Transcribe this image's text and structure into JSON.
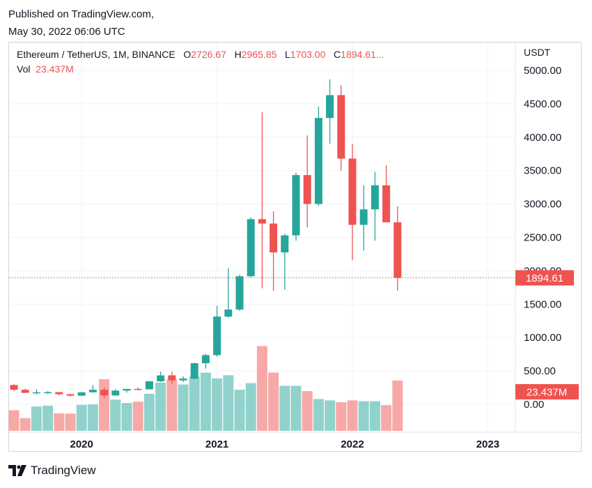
{
  "header": {
    "published_line1": "Published on TradingView.com,",
    "published_line2": "May 30, 2022 06:06 UTC"
  },
  "legend": {
    "symbol": "Ethereum / TetherUS, 1M, BINANCE",
    "o_label": "O",
    "o_value": "2726.67",
    "h_label": "H",
    "h_value": "2965.85",
    "l_label": "L",
    "l_value": "1703.00",
    "c_label": "C",
    "c_value": "1894.61...",
    "vol_label": "Vol",
    "vol_value": "23.437M"
  },
  "axis": {
    "unit": "USDT",
    "last_price_label": "1894.61",
    "volume_label": "23.437M"
  },
  "footer": {
    "brand": "TradingView"
  },
  "colors": {
    "up": "#26a69a",
    "down": "#ef5350",
    "up_volume": "#26a69a",
    "down_volume": "#ef5350",
    "grid": "#f0f3fa",
    "text": "#131722"
  },
  "chart_data": {
    "type": "candlestick",
    "symbol": "Ethereum / TetherUS",
    "interval": "1M",
    "exchange": "BINANCE",
    "y_axis_ticks": [
      "5000.00",
      "4500.00",
      "4000.00",
      "3500.00",
      "3000.00",
      "2500.00",
      "2000.00",
      "1500.00",
      "1000.00",
      "500.00",
      "0.00"
    ],
    "ylim": [
      0,
      5000
    ],
    "x_axis_ticks": [
      "2020",
      "2021",
      "2022",
      "2023"
    ],
    "grid": true,
    "last_price": 1894.61,
    "candles": [
      {
        "date": "2019-07",
        "o": 290,
        "h": 300,
        "l": 200,
        "c": 218
      },
      {
        "date": "2019-08",
        "o": 218,
        "h": 235,
        "l": 170,
        "c": 172
      },
      {
        "date": "2019-09",
        "o": 172,
        "h": 225,
        "l": 150,
        "c": 180
      },
      {
        "date": "2019-10",
        "o": 180,
        "h": 198,
        "l": 152,
        "c": 183
      },
      {
        "date": "2019-11",
        "o": 183,
        "h": 185,
        "l": 134,
        "c": 152
      },
      {
        "date": "2019-12",
        "o": 152,
        "h": 155,
        "l": 118,
        "c": 130
      },
      {
        "date": "2020-01",
        "o": 130,
        "h": 185,
        "l": 127,
        "c": 180
      },
      {
        "date": "2020-02",
        "o": 180,
        "h": 288,
        "l": 178,
        "c": 218
      },
      {
        "date": "2020-03",
        "o": 218,
        "h": 253,
        "l": 86,
        "c": 133
      },
      {
        "date": "2020-04",
        "o": 133,
        "h": 228,
        "l": 130,
        "c": 206
      },
      {
        "date": "2020-05",
        "o": 206,
        "h": 227,
        "l": 175,
        "c": 231
      },
      {
        "date": "2020-06",
        "o": 231,
        "h": 253,
        "l": 212,
        "c": 225
      },
      {
        "date": "2020-07",
        "o": 225,
        "h": 350,
        "l": 223,
        "c": 345
      },
      {
        "date": "2020-08",
        "o": 345,
        "h": 490,
        "l": 335,
        "c": 434
      },
      {
        "date": "2020-09",
        "o": 434,
        "h": 488,
        "l": 308,
        "c": 359
      },
      {
        "date": "2020-10",
        "o": 359,
        "h": 420,
        "l": 336,
        "c": 386
      },
      {
        "date": "2020-11",
        "o": 386,
        "h": 623,
        "l": 374,
        "c": 616
      },
      {
        "date": "2020-12",
        "o": 616,
        "h": 755,
        "l": 535,
        "c": 737
      },
      {
        "date": "2021-01",
        "o": 737,
        "h": 1475,
        "l": 714,
        "c": 1314
      },
      {
        "date": "2021-02",
        "o": 1314,
        "h": 2040,
        "l": 1300,
        "c": 1419
      },
      {
        "date": "2021-03",
        "o": 1419,
        "h": 1943,
        "l": 1400,
        "c": 1918
      },
      {
        "date": "2021-04",
        "o": 1918,
        "h": 2800,
        "l": 1900,
        "c": 2773
      },
      {
        "date": "2021-05",
        "o": 2773,
        "h": 4372,
        "l": 1737,
        "c": 2707
      },
      {
        "date": "2021-06",
        "o": 2707,
        "h": 2891,
        "l": 1700,
        "c": 2275
      },
      {
        "date": "2021-07",
        "o": 2275,
        "h": 2551,
        "l": 1718,
        "c": 2530
      },
      {
        "date": "2021-08",
        "o": 2530,
        "h": 3466,
        "l": 2450,
        "c": 3433
      },
      {
        "date": "2021-09",
        "o": 3433,
        "h": 4027,
        "l": 2650,
        "c": 3000
      },
      {
        "date": "2021-10",
        "o": 3000,
        "h": 4460,
        "l": 2970,
        "c": 4288
      },
      {
        "date": "2021-11",
        "o": 4288,
        "h": 4868,
        "l": 3900,
        "c": 4630
      },
      {
        "date": "2021-12",
        "o": 4630,
        "h": 4778,
        "l": 3500,
        "c": 3680
      },
      {
        "date": "2022-01",
        "o": 3680,
        "h": 3900,
        "l": 2160,
        "c": 2688
      },
      {
        "date": "2022-02",
        "o": 2688,
        "h": 3280,
        "l": 2300,
        "c": 2920
      },
      {
        "date": "2022-03",
        "o": 2920,
        "h": 3480,
        "l": 2450,
        "c": 3280
      },
      {
        "date": "2022-04",
        "o": 3280,
        "h": 3580,
        "l": 2750,
        "c": 2726
      },
      {
        "date": "2022-05",
        "o": 2726,
        "h": 2966,
        "l": 1703,
        "c": 1895
      }
    ],
    "volume_relative": [
      0.78,
      0.48,
      0.92,
      0.95,
      0.66,
      0.65,
      0.98,
      1.0,
      1.95,
      1.18,
      1.05,
      1.1,
      1.4,
      1.82,
      1.95,
      1.75,
      2.05,
      2.2,
      1.98,
      2.1,
      1.55,
      1.8,
      3.2,
      2.2,
      1.7,
      1.7,
      1.5,
      1.2,
      1.15,
      1.08,
      1.15,
      1.12,
      1.12,
      0.97,
      1.9
    ]
  }
}
